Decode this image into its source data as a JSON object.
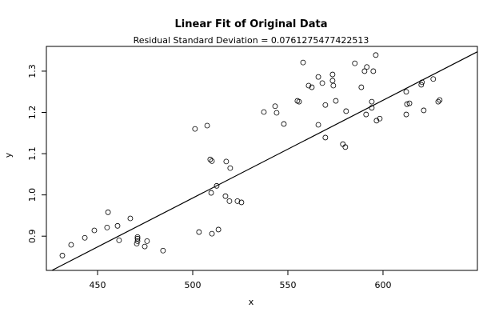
{
  "chart_data": {
    "type": "scatter",
    "title": "Linear Fit of Original Data",
    "subtitle": "Residual Standard Deviation =  0.0761275477422513",
    "x_label": "x",
    "y_label": "y",
    "xlim": [
      423.1,
      649.6
    ],
    "ylim": [
      0.817,
      1.36
    ],
    "xticks": [
      450,
      500,
      550,
      600
    ],
    "yticks": [
      0.9,
      {
        "value": 1,
        "label": "1.0"
      },
      1.1,
      1.2,
      1.3
    ],
    "color": "#000000",
    "x": [
      431.5,
      436.1,
      443.3,
      448.3,
      455.0,
      455.5,
      460.5,
      461.3,
      467.2,
      470.6,
      471.0,
      471.0,
      471.0,
      474.8,
      476.0,
      484.4,
      501.2,
      503.3,
      507.6,
      509.2,
      510.1,
      509.7,
      510.1,
      512.6,
      513.5,
      517.6,
      517.2,
      519.3,
      519.7,
      523.5,
      525.6,
      537.4,
      543.3,
      544.1,
      547.9,
      555.0,
      555.9,
      558.0,
      560.9,
      562.6,
      566.0,
      566.0,
      568.1,
      569.7,
      569.7,
      573.5,
      573.5,
      573.9,
      575.2,
      578.9,
      580.2,
      580.6,
      585.2,
      588.6,
      590.3,
      591.5,
      591.1,
      594.1,
      594.1,
      594.9,
      596.2,
      596.6,
      598.3,
      612.2,
      612.6,
      613.9,
      612.2,
      620.5,
      620.1,
      621.4,
      626.4,
      629.0,
      629.8
    ],
    "values": [
      0.853,
      0.879,
      0.896,
      0.914,
      0.921,
      0.958,
      0.925,
      0.89,
      0.943,
      0.882,
      0.894,
      0.898,
      0.888,
      0.875,
      0.888,
      0.865,
      1.16,
      0.91,
      1.168,
      1.086,
      1.082,
      1.005,
      0.906,
      1.022,
      0.916,
      1.081,
      0.997,
      0.985,
      1.065,
      0.985,
      0.982,
      1.201,
      1.215,
      1.199,
      1.172,
      1.228,
      1.226,
      1.321,
      1.265,
      1.261,
      1.286,
      1.17,
      1.271,
      1.218,
      1.139,
      1.292,
      1.277,
      1.265,
      1.228,
      1.123,
      1.116,
      1.203,
      1.319,
      1.261,
      1.3,
      1.31,
      1.195,
      1.226,
      1.211,
      1.3,
      1.339,
      1.18,
      1.185,
      1.195,
      1.22,
      1.222,
      1.25,
      1.273,
      1.267,
      1.205,
      1.281,
      1.226,
      1.23
    ],
    "fit_line": {
      "x": [
        426,
        649.6
      ],
      "y": [
        0.817,
        1.347
      ],
      "color": "#000000"
    }
  }
}
